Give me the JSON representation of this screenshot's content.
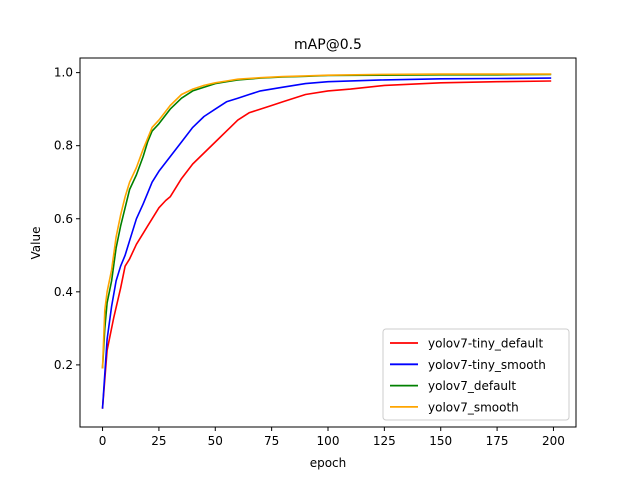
{
  "chart_data": {
    "type": "line",
    "title": "mAP@0.5",
    "xlabel": "epoch",
    "ylabel": "Value",
    "xlim": [
      -10,
      210
    ],
    "ylim": [
      0.03,
      1.04
    ],
    "x_ticks": [
      0,
      25,
      50,
      75,
      100,
      125,
      150,
      175,
      200
    ],
    "y_ticks": [
      0.2,
      0.4,
      0.6,
      0.8,
      1.0
    ],
    "x_tick_labels": [
      "0",
      "25",
      "50",
      "75",
      "100",
      "125",
      "150",
      "175",
      "200"
    ],
    "y_tick_labels": [
      "0.2",
      "0.4",
      "0.6",
      "0.8",
      "1.0"
    ],
    "grid": false,
    "legend_position": "bottom-right",
    "series": [
      {
        "name": "yolov7-tiny_default",
        "color": "#ff0000",
        "x": [
          0,
          2,
          5,
          8,
          10,
          12,
          15,
          18,
          20,
          22,
          25,
          28,
          30,
          35,
          40,
          45,
          50,
          55,
          60,
          65,
          70,
          75,
          80,
          90,
          100,
          110,
          125,
          150,
          175,
          199
        ],
        "y": [
          0.08,
          0.24,
          0.33,
          0.41,
          0.47,
          0.49,
          0.53,
          0.56,
          0.58,
          0.6,
          0.63,
          0.65,
          0.66,
          0.71,
          0.75,
          0.78,
          0.81,
          0.84,
          0.87,
          0.89,
          0.9,
          0.91,
          0.92,
          0.94,
          0.95,
          0.955,
          0.965,
          0.972,
          0.975,
          0.977
        ]
      },
      {
        "name": "yolov7-tiny_smooth",
        "color": "#0000ff",
        "x": [
          0,
          2,
          4,
          6,
          8,
          10,
          12,
          15,
          18,
          20,
          22,
          25,
          30,
          35,
          40,
          45,
          50,
          55,
          60,
          65,
          70,
          75,
          80,
          90,
          100,
          125,
          150,
          175,
          199
        ],
        "y": [
          0.08,
          0.27,
          0.36,
          0.43,
          0.47,
          0.5,
          0.54,
          0.6,
          0.64,
          0.67,
          0.7,
          0.73,
          0.77,
          0.81,
          0.85,
          0.88,
          0.9,
          0.92,
          0.93,
          0.94,
          0.95,
          0.955,
          0.96,
          0.97,
          0.975,
          0.98,
          0.983,
          0.984,
          0.985
        ]
      },
      {
        "name": "yolov7_default",
        "color": "#008000",
        "x": [
          0,
          1,
          2,
          4,
          6,
          8,
          10,
          12,
          15,
          18,
          20,
          22,
          25,
          30,
          35,
          40,
          45,
          50,
          55,
          60,
          70,
          80,
          90,
          100,
          125,
          150,
          175,
          199
        ],
        "y": [
          0.19,
          0.3,
          0.37,
          0.43,
          0.52,
          0.58,
          0.63,
          0.68,
          0.72,
          0.77,
          0.81,
          0.84,
          0.86,
          0.9,
          0.93,
          0.95,
          0.96,
          0.97,
          0.975,
          0.98,
          0.985,
          0.988,
          0.99,
          0.992,
          0.993,
          0.994,
          0.994,
          0.995
        ]
      },
      {
        "name": "yolov7_smooth",
        "color": "#ffa500",
        "x": [
          0,
          1,
          2,
          4,
          6,
          8,
          10,
          12,
          15,
          18,
          20,
          22,
          25,
          30,
          35,
          40,
          45,
          50,
          55,
          60,
          70,
          80,
          90,
          100,
          125,
          150,
          175,
          199
        ],
        "y": [
          0.19,
          0.35,
          0.4,
          0.46,
          0.55,
          0.61,
          0.66,
          0.7,
          0.74,
          0.79,
          0.82,
          0.85,
          0.87,
          0.91,
          0.94,
          0.955,
          0.965,
          0.972,
          0.977,
          0.982,
          0.986,
          0.989,
          0.991,
          0.993,
          0.995,
          0.996,
          0.996,
          0.996
        ]
      }
    ]
  }
}
